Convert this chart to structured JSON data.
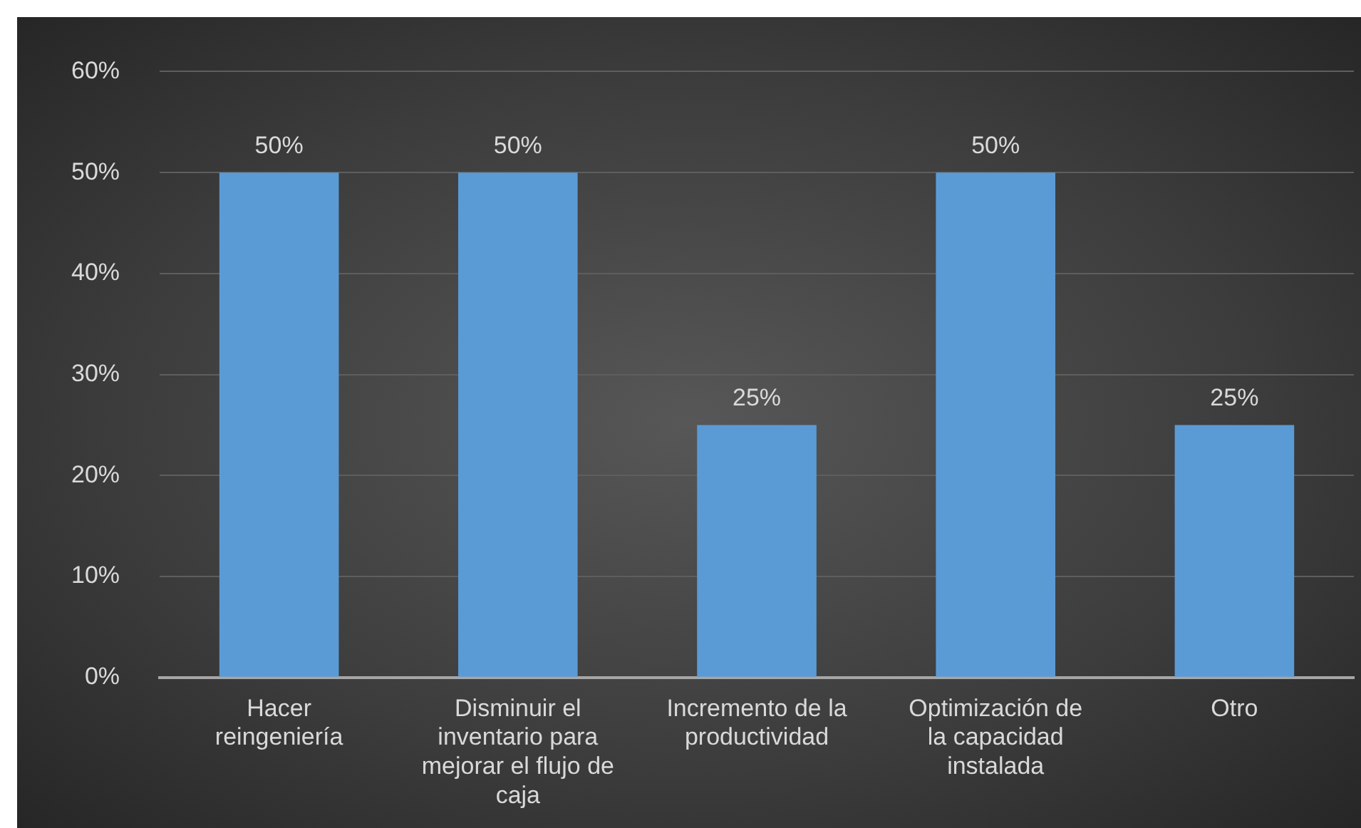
{
  "chart_data": {
    "type": "bar",
    "categories": [
      "Hacer reingeniería",
      "Disminuir el inventario para mejorar el flujo de caja",
      "Incremento de la productividad",
      "Optimización de la capacidad instalada",
      "Otro"
    ],
    "values": [
      50,
      50,
      25,
      50,
      25
    ],
    "value_labels": [
      "50%",
      "50%",
      "25%",
      "50%",
      "25%"
    ],
    "color": "#5b9bd5",
    "ylim": [
      0,
      60
    ],
    "yticks": [
      {
        "value": 0,
        "label": "0%"
      },
      {
        "value": 10,
        "label": "10%"
      },
      {
        "value": 20,
        "label": "20%"
      },
      {
        "value": 30,
        "label": "30%"
      },
      {
        "value": 40,
        "label": "40%"
      },
      {
        "value": 50,
        "label": "50%"
      },
      {
        "value": 60,
        "label": "60%"
      }
    ],
    "grid": "y",
    "legend": false
  }
}
